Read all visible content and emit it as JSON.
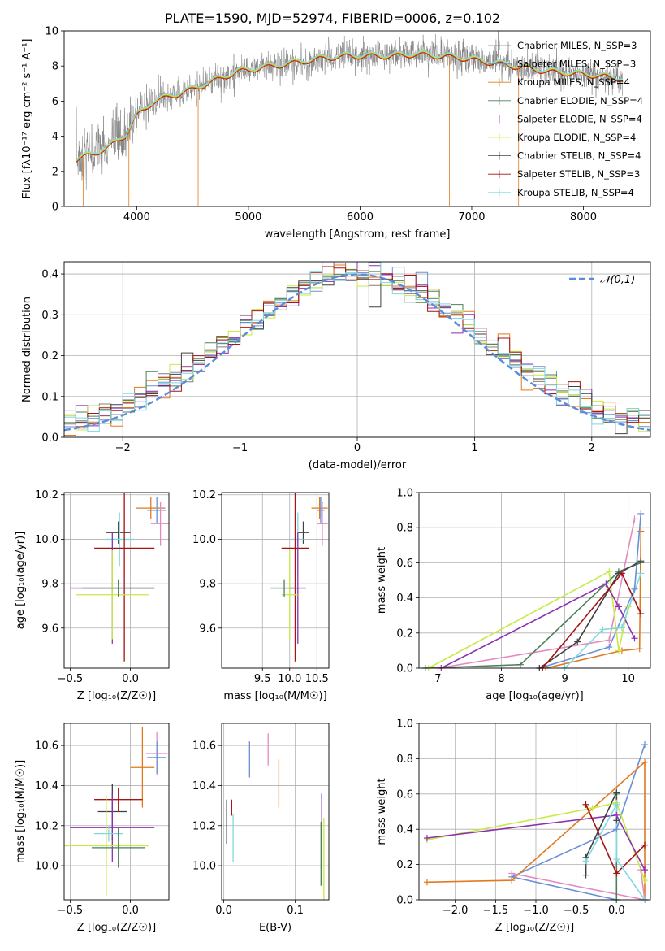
{
  "title": "PLATE=1590, MJD=52974, FIBERID=0006, z=0.102",
  "colors": {
    "chabrier_miles": "#7f7f7f",
    "salpeter_miles": "#6a8fd6",
    "kroupa_miles": "#e07a1f",
    "chabrier_elodie": "#4c7f5a",
    "salpeter_elodie": "#8e2fb0",
    "kroupa_elodie": "#c7ea46",
    "chabrier_stelib": "#404040",
    "salpeter_stelib": "#a31414",
    "kroupa_stelib": "#7fd8e0",
    "pink": "#e58ac0",
    "normal_curve": "#5b8bd9"
  },
  "chart_data": [
    {
      "id": "spectrum",
      "type": "line",
      "xlabel": "wavelength [Angstrom, rest frame]",
      "ylabel": "Flux [fλ10⁻¹⁷ erg cm⁻² s⁻¹ A⁻¹]",
      "xlim": [
        3350,
        8600
      ],
      "ylim": [
        0,
        10
      ],
      "xticks": [
        4000,
        5000,
        6000,
        7000,
        8000
      ],
      "yticks": [
        0,
        2,
        4,
        6,
        8,
        10
      ],
      "grid": false,
      "legend_position": "upper right",
      "legend": [
        {
          "label": "Chabrier MILES, N_SSP=3",
          "color_key": "chabrier_miles"
        },
        {
          "label": "Salpeter MILES, N_SSP=3",
          "color_key": "salpeter_miles"
        },
        {
          "label": "Kroupa MILES, N_SSP=4",
          "color_key": "kroupa_miles"
        },
        {
          "label": "Chabrier ELODIE, N_SSP=4",
          "color_key": "chabrier_elodie"
        },
        {
          "label": "Salpeter ELODIE, N_SSP=4",
          "color_key": "salpeter_elodie"
        },
        {
          "label": "Kroupa ELODIE, N_SSP=4",
          "color_key": "kroupa_elodie"
        },
        {
          "label": "Chabrier STELIB, N_SSP=4",
          "color_key": "chabrier_stelib"
        },
        {
          "label": "Salpeter STELIB, N_SSP=3",
          "color_key": "salpeter_stelib"
        },
        {
          "label": "Kroupa STELIB, N_SSP=4",
          "color_key": "kroupa_stelib"
        }
      ],
      "continuum": {
        "x": [
          3460,
          3600,
          3750,
          3900,
          4000,
          4150,
          4300,
          4500,
          4700,
          4900,
          5100,
          5300,
          5500,
          5700,
          5900,
          6100,
          6300,
          6500,
          6700,
          6900,
          7100,
          7300,
          7500,
          7700,
          7900,
          8100,
          8350
        ],
        "y": [
          2.7,
          3.0,
          3.4,
          4.1,
          5.2,
          6.0,
          6.3,
          6.7,
          7.2,
          7.7,
          7.9,
          8.1,
          8.3,
          8.5,
          8.6,
          8.6,
          8.6,
          8.7,
          8.6,
          8.5,
          8.3,
          8.1,
          7.9,
          7.7,
          7.6,
          7.5,
          7.3
        ]
      },
      "absorption_spikes": [
        {
          "x": 3520,
          "y": 0
        },
        {
          "x": 3930,
          "y": 0
        },
        {
          "x": 4550,
          "y": 0
        },
        {
          "x": 6800,
          "y": 0
        },
        {
          "x": 7420,
          "y": 0
        }
      ]
    },
    {
      "id": "residuals",
      "type": "histogram",
      "xlabel": "(data-model)/error",
      "ylabel": "Normed distribution",
      "xlim": [
        -2.5,
        2.5
      ],
      "ylim": [
        0,
        0.43
      ],
      "xticks": [
        -2,
        -1,
        0,
        1,
        2
      ],
      "yticks": [
        0.0,
        0.1,
        0.2,
        0.3,
        0.4
      ],
      "grid": true,
      "bin_width": 0.1,
      "legend_position": "upper right",
      "legend": [
        {
          "label": "𝒩(0,1)",
          "color_key": "normal_curve",
          "style": "dashed"
        }
      ],
      "series_color_keys": [
        "chabrier_miles",
        "salpeter_miles",
        "kroupa_miles",
        "chabrier_elodie",
        "salpeter_elodie",
        "kroupa_elodie",
        "chabrier_stelib",
        "salpeter_stelib",
        "kroupa_stelib"
      ]
    },
    {
      "id": "age_vs_Z",
      "type": "errorbar",
      "xlabel": "Z [log₁₀(Z/Z☉)]",
      "ylabel": "age  [log₁₀(age/yr)]",
      "xlim": [
        -0.55,
        0.32
      ],
      "ylim": [
        9.42,
        10.21
      ],
      "xticks": [
        -0.5,
        0.0
      ],
      "yticks": [
        9.6,
        9.8,
        10.0,
        10.2
      ],
      "grid": true,
      "points": [
        {
          "x": 0.17,
          "xerr": 0.12,
          "y": 10.14,
          "yerr": 0.05,
          "color_key": "kroupa_miles"
        },
        {
          "x": 0.22,
          "xerr": 0.08,
          "y": 10.13,
          "yerr": 0.06,
          "color_key": "salpeter_miles"
        },
        {
          "x": 0.25,
          "xerr": 0.08,
          "y": 10.07,
          "yerr": 0.1,
          "color_key": "pink"
        },
        {
          "x": -0.1,
          "xerr": 0.1,
          "y": 10.03,
          "yerr": 0.05,
          "color_key": "chabrier_stelib"
        },
        {
          "x": -0.09,
          "xerr": 0.12,
          "y": 10.0,
          "yerr": 0.12,
          "color_key": "kroupa_stelib"
        },
        {
          "x": -0.05,
          "xerr": 0.25,
          "y": 9.96,
          "yerr": 0.51,
          "color_key": "salpeter_stelib"
        },
        {
          "x": -0.15,
          "xerr": 0.35,
          "y": 9.78,
          "yerr": 0.25,
          "color_key": "salpeter_elodie"
        },
        {
          "x": -0.15,
          "xerr": 0.3,
          "y": 9.75,
          "yerr": 0.2,
          "color_key": "kroupa_elodie"
        },
        {
          "x": -0.1,
          "xerr": 0.3,
          "y": 9.78,
          "yerr": 0.04,
          "color_key": "chabrier_elodie"
        }
      ]
    },
    {
      "id": "age_vs_mass",
      "type": "errorbar",
      "xlabel": "mass [log₁₀(M/M☉)]",
      "ylabel": "",
      "xlim": [
        8.75,
        10.72
      ],
      "ylim": [
        9.42,
        10.21
      ],
      "xticks": [
        9.5,
        10.0,
        10.5
      ],
      "yticks": [
        9.6,
        9.8,
        10.0,
        10.2
      ],
      "grid": true,
      "points": [
        {
          "x": 10.55,
          "xerr": 0.15,
          "y": 10.14,
          "yerr": 0.05,
          "color_key": "kroupa_miles"
        },
        {
          "x": 10.57,
          "xerr": 0.07,
          "y": 10.13,
          "yerr": 0.06,
          "color_key": "salpeter_miles"
        },
        {
          "x": 10.6,
          "xerr": 0.1,
          "y": 10.07,
          "yerr": 0.1,
          "color_key": "pink"
        },
        {
          "x": 10.25,
          "xerr": 0.1,
          "y": 10.03,
          "yerr": 0.05,
          "color_key": "chabrier_stelib"
        },
        {
          "x": 10.15,
          "xerr": 0.1,
          "y": 10.0,
          "yerr": 0.12,
          "color_key": "kroupa_stelib"
        },
        {
          "x": 10.1,
          "xerr": 0.25,
          "y": 9.96,
          "yerr": 0.51,
          "color_key": "salpeter_stelib"
        },
        {
          "x": 10.15,
          "xerr": 0.15,
          "y": 9.78,
          "yerr": 0.25,
          "color_key": "salpeter_elodie"
        },
        {
          "x": 10.0,
          "xerr": 0.15,
          "y": 9.75,
          "yerr": 0.2,
          "color_key": "kroupa_elodie"
        },
        {
          "x": 9.9,
          "xerr": 0.25,
          "y": 9.78,
          "yerr": 0.04,
          "color_key": "chabrier_elodie"
        }
      ]
    },
    {
      "id": "weight_vs_age",
      "type": "line",
      "xlabel": "age  [log₁₀(age/yr)]",
      "ylabel": "mass weight",
      "xlim": [
        6.7,
        10.35
      ],
      "ylim": [
        0,
        1.0
      ],
      "xticks": [
        7,
        8,
        9,
        10
      ],
      "yticks": [
        0.0,
        0.2,
        0.4,
        0.6,
        0.8,
        1.0
      ],
      "grid": true,
      "series": [
        {
          "color_key": "salpeter_miles",
          "x": [
            8.6,
            9.7,
            10.1,
            10.2
          ],
          "y": [
            0.0,
            0.12,
            0.45,
            0.88
          ]
        },
        {
          "color_key": "kroupa_miles",
          "x": [
            8.7,
            9.9,
            10.18,
            10.2
          ],
          "y": [
            0.0,
            0.1,
            0.11,
            0.78
          ]
        },
        {
          "color_key": "pink",
          "x": [
            7.0,
            9.7,
            10.1
          ],
          "y": [
            0.0,
            0.16,
            0.85
          ]
        },
        {
          "color_key": "kroupa_elodie",
          "x": [
            6.85,
            9.7,
            9.85,
            10.0
          ],
          "y": [
            0.0,
            0.55,
            0.1,
            0.35
          ]
        },
        {
          "color_key": "salpeter_elodie",
          "x": [
            7.05,
            9.65,
            9.85,
            10.1
          ],
          "y": [
            0.0,
            0.48,
            0.35,
            0.17
          ]
        },
        {
          "color_key": "chabrier_elodie",
          "x": [
            6.8,
            8.3,
            9.85,
            10.2
          ],
          "y": [
            0.0,
            0.02,
            0.55,
            0.6
          ]
        },
        {
          "color_key": "chabrier_stelib",
          "x": [
            8.6,
            9.2,
            9.85,
            10.2
          ],
          "y": [
            0.0,
            0.15,
            0.54,
            0.61
          ]
        },
        {
          "color_key": "salpeter_stelib",
          "x": [
            8.65,
            9.9,
            10.2
          ],
          "y": [
            0.0,
            0.54,
            0.31
          ]
        },
        {
          "color_key": "kroupa_stelib",
          "x": [
            9.0,
            9.6,
            9.9,
            10.2
          ],
          "y": [
            0.0,
            0.22,
            0.23,
            0.54
          ]
        }
      ]
    },
    {
      "id": "mass_vs_Z",
      "type": "errorbar",
      "xlabel": "Z [log₁₀(Z/Z☉)]",
      "ylabel": "mass [log₁₀(M/M☉)]",
      "xlim": [
        -0.55,
        0.32
      ],
      "ylim": [
        9.83,
        10.71
      ],
      "xticks": [
        -0.5,
        0.0
      ],
      "yticks": [
        10.0,
        10.2,
        10.4,
        10.6
      ],
      "grid": true,
      "points": [
        {
          "x": 0.22,
          "xerr": 0.09,
          "y": 10.56,
          "yerr": 0.11,
          "color_key": "pink"
        },
        {
          "x": 0.22,
          "xerr": 0.08,
          "y": 10.54,
          "yerr": 0.08,
          "color_key": "salpeter_miles"
        },
        {
          "x": 0.1,
          "xerr": 0.1,
          "y": 10.49,
          "yerr": 0.2,
          "color_key": "kroupa_miles"
        },
        {
          "x": -0.1,
          "xerr": 0.2,
          "y": 10.33,
          "yerr": 0.06,
          "color_key": "salpeter_stelib"
        },
        {
          "x": -0.15,
          "xerr": 0.12,
          "y": 10.27,
          "yerr": 0.14,
          "color_key": "chabrier_stelib"
        },
        {
          "x": -0.15,
          "xerr": 0.35,
          "y": 10.19,
          "yerr": 0.17,
          "color_key": "salpeter_elodie"
        },
        {
          "x": -0.18,
          "xerr": 0.12,
          "y": 10.16,
          "yerr": 0.04,
          "color_key": "kroupa_stelib"
        },
        {
          "x": -0.2,
          "xerr": 0.35,
          "y": 10.1,
          "yerr": 0.25,
          "color_key": "kroupa_elodie"
        },
        {
          "x": -0.1,
          "xerr": 0.22,
          "y": 10.09,
          "yerr": 0.1,
          "color_key": "chabrier_elodie"
        }
      ]
    },
    {
      "id": "mass_vs_ebv",
      "type": "errorbar",
      "xlabel": "E(B-V)",
      "ylabel": "",
      "xlim": [
        -0.003,
        0.147
      ],
      "ylim": [
        9.83,
        10.71
      ],
      "xticks": [
        0.0,
        0.1
      ],
      "yticks": [
        10.0,
        10.2,
        10.4,
        10.6
      ],
      "grid": true,
      "points": [
        {
          "x": 0.036,
          "yerr": 0.09,
          "y": 10.53,
          "color_key": "salpeter_miles"
        },
        {
          "x": 0.062,
          "yerr": 0.08,
          "y": 10.58,
          "color_key": "pink"
        },
        {
          "x": 0.077,
          "yerr": 0.12,
          "y": 10.41,
          "color_key": "kroupa_miles"
        },
        {
          "x": 0.004,
          "yerr": 0.11,
          "y": 10.22,
          "color_key": "chabrier_stelib"
        },
        {
          "x": 0.011,
          "yerr": 0.04,
          "y": 10.29,
          "color_key": "salpeter_stelib"
        },
        {
          "x": 0.013,
          "yerr": 0.12,
          "y": 10.14,
          "color_key": "kroupa_stelib"
        },
        {
          "x": 0.137,
          "yerr": 0.11,
          "y": 10.25,
          "color_key": "salpeter_elodie"
        },
        {
          "x": 0.14,
          "yerr": 0.24,
          "y": 10.0,
          "color_key": "kroupa_elodie"
        },
        {
          "x": 0.136,
          "yerr": 0.16,
          "y": 10.06,
          "color_key": "chabrier_elodie"
        }
      ]
    },
    {
      "id": "weight_vs_Z",
      "type": "line",
      "xlabel": "Z [log₁₀(Z/Z☉)]",
      "ylabel": "mass weight",
      "xlim": [
        -2.45,
        0.42
      ],
      "ylim": [
        0,
        1.0
      ],
      "xticks": [
        -2.0,
        -1.5,
        -1.0,
        -0.5,
        0.0
      ],
      "yticks": [
        0.0,
        0.2,
        0.4,
        0.6,
        0.8,
        1.0
      ],
      "grid": true,
      "series": [
        {
          "color_key": "salpeter_miles",
          "x": [
            0.0,
            -1.3,
            0.0,
            0.35
          ],
          "y": [
            0.0,
            0.13,
            0.4,
            0.88
          ]
        },
        {
          "color_key": "kroupa_miles",
          "x": [
            -2.35,
            -1.3,
            0.35,
            0.35
          ],
          "y": [
            0.1,
            0.11,
            0.78,
            0.0
          ]
        },
        {
          "color_key": "pink",
          "x": [
            -1.3,
            0.35,
            0.3
          ],
          "y": [
            0.15,
            0.0,
            0.17
          ]
        },
        {
          "color_key": "kroupa_elodie",
          "x": [
            -2.35,
            -0.3,
            0.0,
            0.35
          ],
          "y": [
            0.34,
            0.52,
            0.55,
            0.11
          ]
        },
        {
          "color_key": "salpeter_elodie",
          "x": [
            -2.35,
            0.0,
            0.35
          ],
          "y": [
            0.35,
            0.48,
            0.17
          ]
        },
        {
          "color_key": "chabrier_elodie",
          "x": [
            0.0,
            0.0
          ],
          "y": [
            0.0,
            0.6
          ]
        },
        {
          "color_key": "chabrier_stelib",
          "x": [
            -0.38,
            -0.38,
            0.0,
            0.0
          ],
          "y": [
            0.14,
            0.24,
            0.61,
            0.45
          ]
        },
        {
          "color_key": "salpeter_stelib",
          "x": [
            -0.38,
            0.0,
            0.35
          ],
          "y": [
            0.54,
            0.15,
            0.31
          ]
        },
        {
          "color_key": "kroupa_stelib",
          "x": [
            -0.38,
            0.0,
            0.0,
            0.35
          ],
          "y": [
            0.22,
            0.54,
            0.23,
            0.0
          ]
        }
      ]
    }
  ]
}
